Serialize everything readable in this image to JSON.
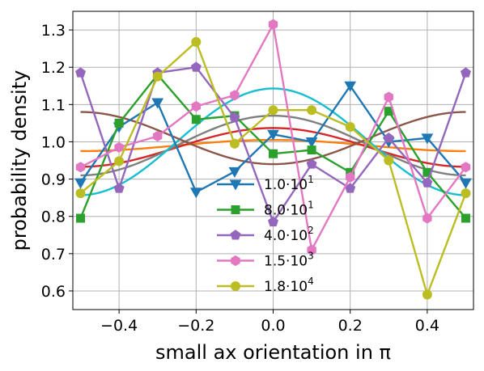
{
  "chart_data": {
    "type": "line",
    "xlabel": "small ax orientation  in π",
    "ylabel": "probability density",
    "xlim": [
      -0.52,
      0.52
    ],
    "ylim": [
      0.55,
      1.35
    ],
    "xticks": [
      -0.4,
      -0.2,
      0.0,
      0.2,
      0.4
    ],
    "xtick_labels": [
      "−0.4",
      "−0.2",
      "0.0",
      "0.2",
      "0.4"
    ],
    "yticks": [
      0.6,
      0.7,
      0.8,
      0.9,
      1.0,
      1.1,
      1.2,
      1.3
    ],
    "ytick_labels": [
      "0.6",
      "0.7",
      "0.8",
      "0.9",
      "1.0",
      "1.1",
      "1.2",
      "1.3"
    ],
    "grid": true,
    "legend_placement": "lower-center",
    "x": [
      -0.5,
      -0.4,
      -0.3,
      -0.2,
      -0.1,
      0.0,
      0.1,
      0.2,
      0.3,
      0.4,
      0.5
    ],
    "series": [
      {
        "name": "1.0·10^1",
        "name_base": "1.0·10",
        "name_exp": "1",
        "color": "#1f77b4",
        "marker": "triangle-down",
        "values": [
          0.89,
          1.04,
          1.105,
          0.865,
          0.92,
          1.02,
          1.0,
          1.15,
          1.0,
          1.01,
          0.89
        ]
      },
      {
        "name": "8.0·10^1",
        "name_base": "8.0·10",
        "name_exp": "1",
        "color": "#2ca02c",
        "marker": "square",
        "values": [
          0.795,
          1.05,
          1.18,
          1.06,
          1.07,
          0.968,
          0.978,
          0.918,
          1.082,
          0.918,
          0.795
        ]
      },
      {
        "name": "4.0·10^2",
        "name_base": "4.0·10",
        "name_exp": "2",
        "color": "#9467bd",
        "marker": "pentagon",
        "values": [
          1.185,
          0.875,
          1.185,
          1.2,
          1.065,
          0.785,
          0.94,
          0.875,
          1.01,
          0.89,
          1.185
        ]
      },
      {
        "name": "1.5·10^3",
        "name_base": "1.5·10",
        "name_exp": "3",
        "color": "#e377c2",
        "marker": "hexagon",
        "values": [
          0.932,
          0.985,
          1.015,
          1.095,
          1.125,
          1.315,
          0.71,
          0.905,
          1.12,
          0.795,
          0.932
        ]
      },
      {
        "name": "1.8·10^4",
        "name_base": "1.8·10",
        "name_exp": "4",
        "color": "#bcbd22",
        "marker": "circle",
        "values": [
          0.862,
          0.948,
          1.175,
          1.268,
          0.995,
          1.085,
          1.085,
          1.04,
          0.95,
          0.59,
          0.862
        ]
      }
    ],
    "fit_curves": [
      {
        "color": "#ff7f0e",
        "center": 0.99,
        "amplitude": 0.015
      },
      {
        "color": "#d62728",
        "center": 0.985,
        "amplitude": 0.052
      },
      {
        "color": "#7f7f7f",
        "center": 0.99,
        "amplitude": 0.08
      },
      {
        "color": "#17becf",
        "center": 1.0,
        "amplitude": 0.143
      },
      {
        "color": "#8c564b",
        "center": 1.01,
        "amplitude": -0.07
      }
    ]
  }
}
